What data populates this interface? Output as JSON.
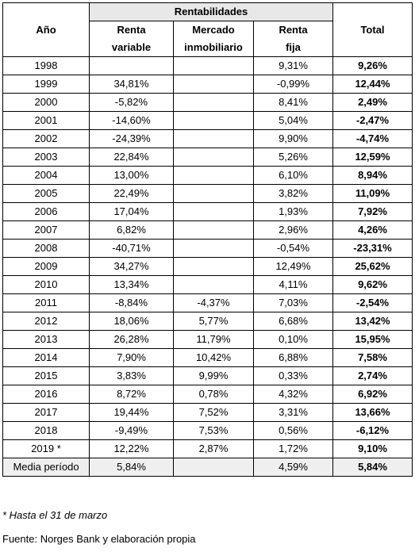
{
  "table": {
    "group_header": "Rentabilidades",
    "columns": {
      "year": "Año",
      "equity_l1": "Renta",
      "equity_l2": "variable",
      "real_estate_l1": "Mercado",
      "real_estate_l2": "inmobiliario",
      "fixed_income_l1": "Renta",
      "fixed_income_l2": "fija",
      "total": "Total"
    },
    "rows": [
      {
        "year": "1998",
        "equity": "",
        "real_estate": "",
        "fixed_income": "9,31%",
        "total": "9,26%"
      },
      {
        "year": "1999",
        "equity": "34,81%",
        "real_estate": "",
        "fixed_income": "-0,99%",
        "total": "12,44%"
      },
      {
        "year": "2000",
        "equity": "-5,82%",
        "real_estate": "",
        "fixed_income": "8,41%",
        "total": "2,49%"
      },
      {
        "year": "2001",
        "equity": "-14,60%",
        "real_estate": "",
        "fixed_income": "5,04%",
        "total": "-2,47%"
      },
      {
        "year": "2002",
        "equity": "-24,39%",
        "real_estate": "",
        "fixed_income": "9,90%",
        "total": "-4,74%"
      },
      {
        "year": "2003",
        "equity": "22,84%",
        "real_estate": "",
        "fixed_income": "5,26%",
        "total": "12,59%"
      },
      {
        "year": "2004",
        "equity": "13,00%",
        "real_estate": "",
        "fixed_income": "6,10%",
        "total": "8,94%"
      },
      {
        "year": "2005",
        "equity": "22,49%",
        "real_estate": "",
        "fixed_income": "3,82%",
        "total": "11,09%"
      },
      {
        "year": "2006",
        "equity": "17,04%",
        "real_estate": "",
        "fixed_income": "1,93%",
        "total": "7,92%"
      },
      {
        "year": "2007",
        "equity": "6,82%",
        "real_estate": "",
        "fixed_income": "2,96%",
        "total": "4,26%"
      },
      {
        "year": "2008",
        "equity": "-40,71%",
        "real_estate": "",
        "fixed_income": "-0,54%",
        "total": "-23,31%"
      },
      {
        "year": "2009",
        "equity": "34,27%",
        "real_estate": "",
        "fixed_income": "12,49%",
        "total": "25,62%"
      },
      {
        "year": "2010",
        "equity": "13,34%",
        "real_estate": "",
        "fixed_income": "4,11%",
        "total": "9,62%"
      },
      {
        "year": "2011",
        "equity": "-8,84%",
        "real_estate": "-4,37%",
        "fixed_income": "7,03%",
        "total": "-2,54%"
      },
      {
        "year": "2012",
        "equity": "18,06%",
        "real_estate": "5,77%",
        "fixed_income": "6,68%",
        "total": "13,42%"
      },
      {
        "year": "2013",
        "equity": "26,28%",
        "real_estate": "11,79%",
        "fixed_income": "0,10%",
        "total": "15,95%"
      },
      {
        "year": "2014",
        "equity": "7,90%",
        "real_estate": "10,42%",
        "fixed_income": "6,88%",
        "total": "7,58%"
      },
      {
        "year": "2015",
        "equity": "3,83%",
        "real_estate": "9,99%",
        "fixed_income": "0,33%",
        "total": "2,74%"
      },
      {
        "year": "2016",
        "equity": "8,72%",
        "real_estate": "0,78%",
        "fixed_income": "4,32%",
        "total": "6,92%"
      },
      {
        "year": "2017",
        "equity": "19,44%",
        "real_estate": "7,52%",
        "fixed_income": "3,31%",
        "total": "13,66%"
      },
      {
        "year": "2018",
        "equity": "-9,49%",
        "real_estate": "7,53%",
        "fixed_income": "0,56%",
        "total": "-6,12%"
      },
      {
        "year": "2019 *",
        "equity": "12,22%",
        "real_estate": "2,87%",
        "fixed_income": "1,72%",
        "total": "9,10%"
      }
    ],
    "average_row": {
      "label": "Media período",
      "equity": "5,84%",
      "real_estate": "",
      "fixed_income": "4,59%",
      "total": "5,84%"
    }
  },
  "notes": {
    "footnote": "* Hasta el 31 de marzo",
    "source": "Fuente: Norges Bank y elaboración propia"
  },
  "colors": {
    "header_band": "#e8e8e8",
    "average_band": "#efefef",
    "border": "#000000"
  }
}
